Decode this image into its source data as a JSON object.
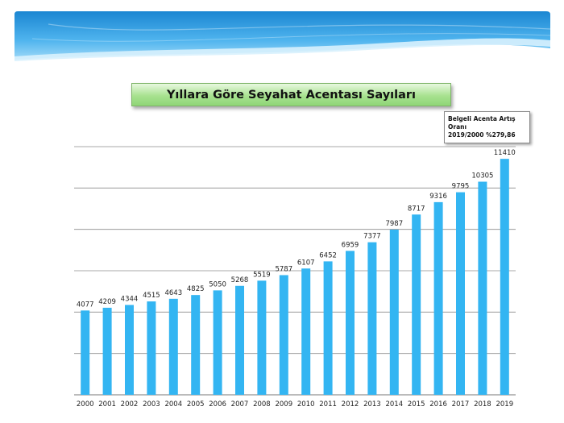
{
  "chart_data": {
    "type": "bar",
    "title": "Yıllara Göre Seyahat Acentası Sayıları",
    "xlabel": "",
    "ylabel": "",
    "categories": [
      "2000",
      "2001",
      "2002",
      "2003",
      "2004",
      "2005",
      "2006",
      "2007",
      "2008",
      "2009",
      "2010",
      "2011",
      "2012",
      "2013",
      "2014",
      "2015",
      "2016",
      "2017",
      "2018",
      "2019"
    ],
    "values": [
      4077,
      4209,
      4344,
      4515,
      4643,
      4825,
      5050,
      5268,
      5519,
      5787,
      6107,
      6452,
      6959,
      7377,
      7987,
      8717,
      9316,
      9795,
      10305,
      11410
    ],
    "ylim": [
      0,
      12000
    ],
    "gridlines": [
      0,
      2000,
      4000,
      6000,
      8000,
      10000,
      12000
    ],
    "grid": true,
    "bar_color": "#33b5f2",
    "annotation": {
      "line1": "Belgeli Acenta Artış",
      "line2": "Oranı",
      "line3": "2019/2000 %279,86"
    }
  },
  "colors": {
    "header_top": "#1f8fd6",
    "header_light": "#bfe7fb",
    "title_green": "#a8e290"
  }
}
